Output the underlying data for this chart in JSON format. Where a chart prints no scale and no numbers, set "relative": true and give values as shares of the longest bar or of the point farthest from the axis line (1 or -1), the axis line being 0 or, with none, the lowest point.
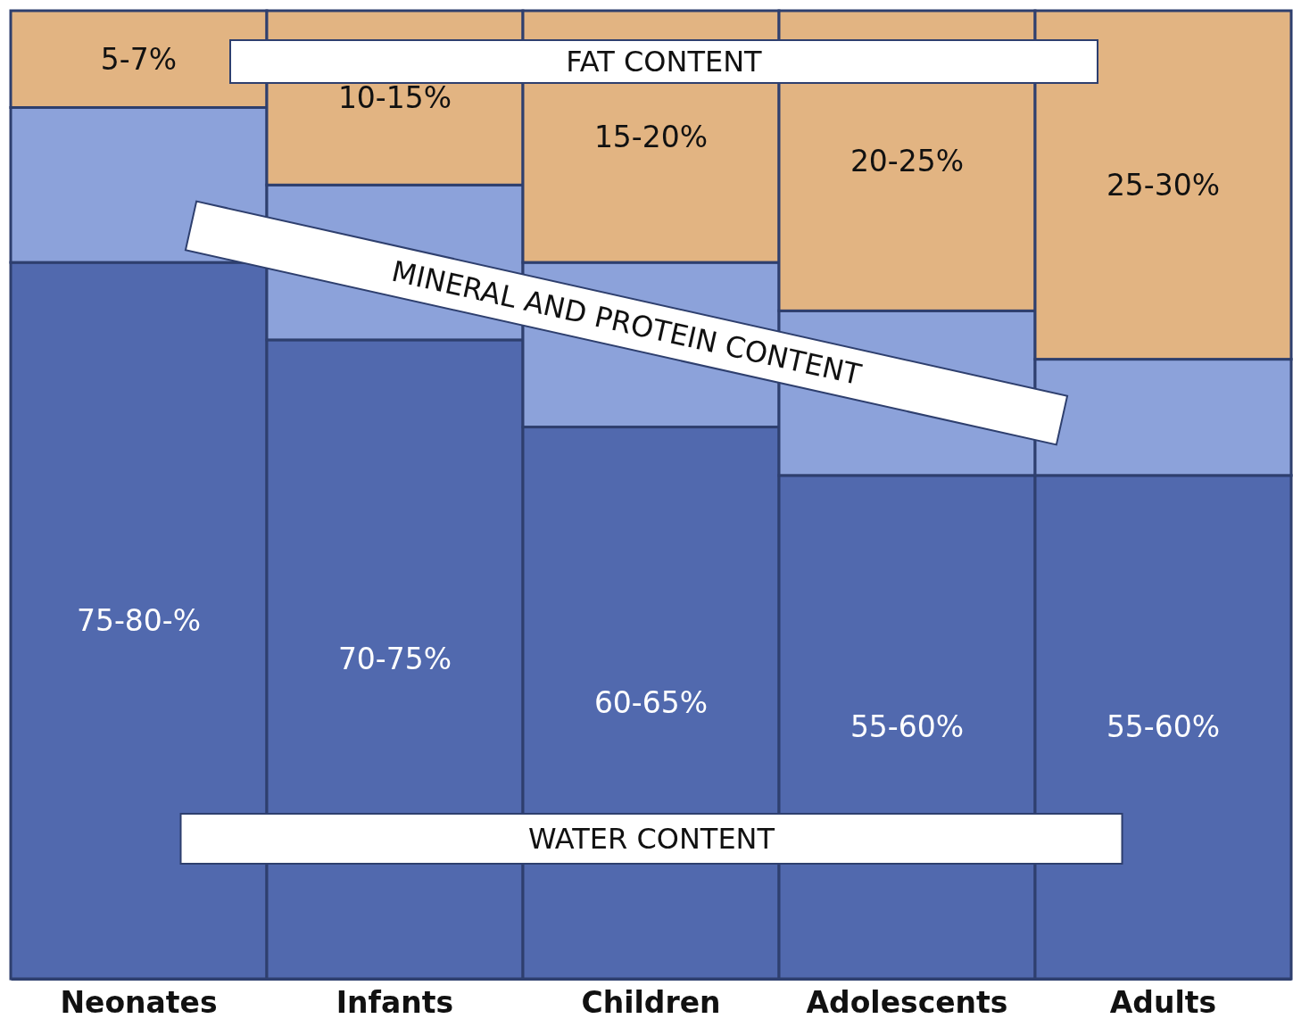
{
  "chart_data": {
    "type": "bar",
    "stacked": true,
    "relative": true,
    "categories": [
      "Neonates",
      "Infants",
      "Children",
      "Adolescents",
      "Adults"
    ],
    "series": [
      {
        "name": "WATER CONTENT",
        "color": "#5169ae",
        "values": [
          0.74,
          0.66,
          0.57,
          0.52,
          0.52
        ]
      },
      {
        "name": "MINERAL AND PROTEIN CONTENT",
        "color": "#8ca2da",
        "values": [
          0.16,
          0.16,
          0.17,
          0.17,
          0.12
        ]
      },
      {
        "name": "FAT CONTENT",
        "color": "#e2b482",
        "values": [
          0.1,
          0.18,
          0.26,
          0.31,
          0.36
        ]
      }
    ],
    "annotations": [
      "75-80-%",
      "70-75%",
      "60-65%",
      "55-60%",
      "55-60%",
      "5-7%",
      "10-15%",
      "15-20%",
      "20-25%",
      "25-30%"
    ]
  }
}
